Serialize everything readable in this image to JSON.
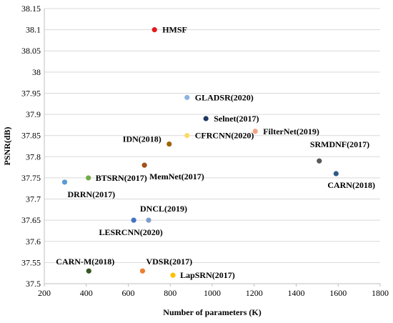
{
  "chart_data": {
    "type": "scatter",
    "xlabel": "Number of parameters (K)",
    "ylabel": "PSNR(dB)",
    "xlim": [
      200,
      1800
    ],
    "ylim": [
      37.5,
      38.15
    ],
    "x_ticks": [
      "200",
      "400",
      "600",
      "800",
      "1000",
      "1200",
      "1400",
      "1600",
      "1800"
    ],
    "y_ticks": [
      "37.5",
      "37.55",
      "37.6",
      "37.65",
      "37.7",
      "37.75",
      "37.8",
      "37.85",
      "37.9",
      "37.95",
      "38",
      "38.05",
      "38.1",
      "38.15"
    ],
    "grid": "horizontal",
    "points": [
      {
        "label": "HMSF",
        "x": 725,
        "y": 38.1,
        "color": "#e31a1c"
      },
      {
        "label": "GLADSR(2020)",
        "x": 880,
        "y": 37.94,
        "color": "#8db3e2"
      },
      {
        "label": "Selnet(2017)",
        "x": 970,
        "y": 37.89,
        "color": "#1f3864"
      },
      {
        "label": "FilterNet(2019)",
        "x": 1205,
        "y": 37.86,
        "color": "#f4a582"
      },
      {
        "label": "CFRCNN(2020)",
        "x": 880,
        "y": 37.85,
        "color": "#ffd966"
      },
      {
        "label": "IDN(2018)",
        "x": 795,
        "y": 37.83,
        "color": "#9c6500"
      },
      {
        "label": "SRMDNF(2017)",
        "x": 1510,
        "y": 37.79,
        "color": "#595959"
      },
      {
        "label": "MemNet(2017)",
        "x": 677,
        "y": 37.78,
        "color": "#a0521a"
      },
      {
        "label": "CARN(2018)",
        "x": 1590,
        "y": 37.76,
        "color": "#2e5a8a"
      },
      {
        "label": "BTSRN(2017)",
        "x": 410,
        "y": 37.75,
        "color": "#70ad47"
      },
      {
        "label": "DRRN(2017)",
        "x": 297,
        "y": 37.74,
        "color": "#5b9bd5"
      },
      {
        "label": "DNCL(2019)",
        "x": 697,
        "y": 37.65,
        "color": "#7f9ccc"
      },
      {
        "label": "LESRCNN(2020)",
        "x": 626,
        "y": 37.65,
        "color": "#4472c4"
      },
      {
        "label": "CARN-M(2018)",
        "x": 412,
        "y": 37.53,
        "color": "#375623"
      },
      {
        "label": "VDSR(2017)",
        "x": 668,
        "y": 37.53,
        "color": "#ed7d31"
      },
      {
        "label": "LapSRN(2017)",
        "x": 813,
        "y": 37.52,
        "color": "#ffc000"
      }
    ]
  }
}
